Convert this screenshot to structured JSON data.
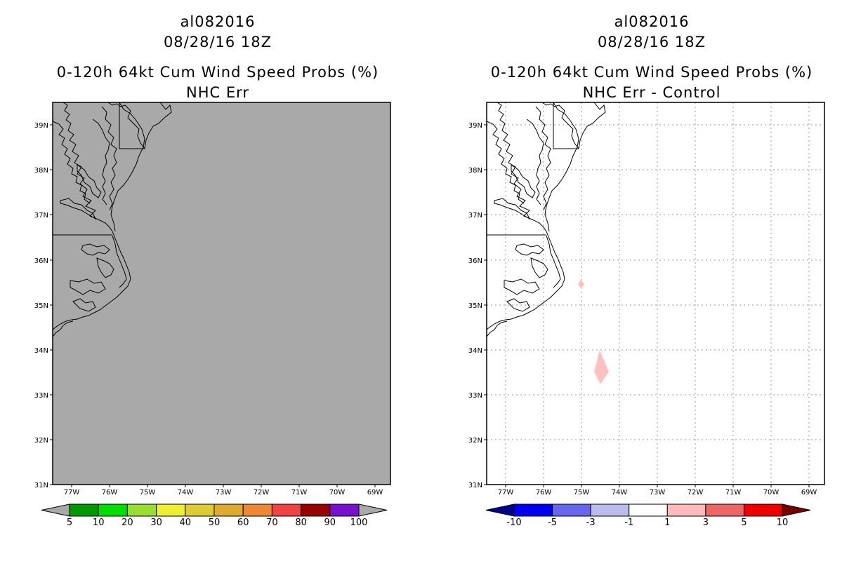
{
  "panels": [
    {
      "storm_id": "al082016",
      "datetime": "08/28/16 18Z",
      "product": "0-120h 64kt Cum Wind Speed Probs (%)",
      "subtitle": "NHC Err",
      "field_color": "#a9a9a9",
      "lat_labels": [
        "39N",
        "38N",
        "37N",
        "36N",
        "35N",
        "34N",
        "33N",
        "32N",
        "31N"
      ],
      "lon_labels": [
        "77W",
        "76W",
        "75W",
        "74W",
        "73W",
        "72W",
        "71W",
        "70W",
        "69W"
      ],
      "colorbar": {
        "colors": [
          "#009900",
          "#00dd00",
          "#99dd33",
          "#eeee33",
          "#ddcc33",
          "#e0aa30",
          "#ee8833",
          "#ee4444",
          "#990000",
          "#7711cc"
        ],
        "under_color": "#a9a9a9",
        "over_color": "#a9a9a9",
        "labels": [
          "5",
          "10",
          "20",
          "30",
          "40",
          "50",
          "60",
          "70",
          "80",
          "90",
          "100"
        ]
      }
    },
    {
      "storm_id": "al082016",
      "datetime": "08/28/16 18Z",
      "product": "0-120h 64kt Cum Wind Speed Probs (%)",
      "subtitle": "NHC Err - Control",
      "field_color": "#ffffff",
      "lat_labels": [
        "39N",
        "38N",
        "37N",
        "36N",
        "35N",
        "34N",
        "33N",
        "32N",
        "31N"
      ],
      "lon_labels": [
        "77W",
        "76W",
        "75W",
        "74W",
        "73W",
        "72W",
        "71W",
        "70W",
        "69W"
      ],
      "colorbar": {
        "colors": [
          "#0000ee",
          "#6666ee",
          "#bbbbee",
          "#ffffff",
          "#ffbbbb",
          "#ee6666",
          "#ee0000"
        ],
        "under_color": "#000088",
        "over_color": "#770000",
        "labels": [
          "-10",
          "-5",
          "-3",
          "-1",
          "1",
          "3",
          "5",
          "10"
        ]
      },
      "anomaly_color": "#ffc0c0"
    }
  ]
}
